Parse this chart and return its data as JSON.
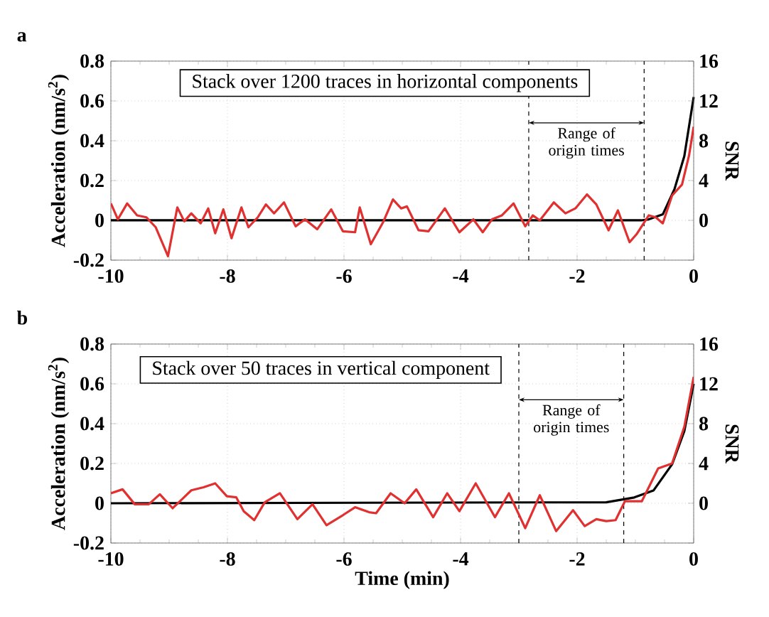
{
  "chart_data": [
    {
      "type": "line",
      "title": "a",
      "ylabel": "Acceleration (nm/s$^{2}$)",
      "y2label": "SNR",
      "xlim": [
        -10,
        0
      ],
      "xticks": [
        -10,
        -8,
        -6,
        -4,
        -2,
        0
      ],
      "ylim": [
        -0.2,
        0.8
      ],
      "yticks": [
        -0.2,
        0,
        0.2,
        0.4,
        0.6,
        0.8
      ],
      "y2lim": [
        -4,
        16
      ],
      "y2ticks": [
        {
          "value": -4,
          "label": null
        },
        0,
        4,
        8,
        12,
        16
      ],
      "grid": true,
      "marker": "none",
      "annotations": [
        "Stack over 1200 traces in horizontal components",
        "Range of origin times"
      ],
      "ref_lines": [
        {
          "axis": "x",
          "value": -2.83,
          "color": "#000000",
          "line_style": "dashed"
        },
        {
          "axis": "x",
          "value": -0.85,
          "color": "#000000",
          "line_style": "dashed"
        }
      ],
      "series": [
        {
          "color": "#000000",
          "x": [
            -10,
            -0.9,
            -0.77,
            -0.53,
            -0.33,
            -0.16,
            0
          ],
          "values": [
            0,
            0,
            0.005,
            0.03,
            0.156,
            0.323,
            0.62
          ]
        },
        {
          "color": "#e03030",
          "axis": "y2",
          "x": [
            -10,
            -9.88,
            -9.72,
            -9.55,
            -9.39,
            -9.23,
            -9.02,
            -8.86,
            -8.74,
            -8.62,
            -8.46,
            -8.33,
            -8.21,
            -8.07,
            -7.93,
            -7.76,
            -7.64,
            -7.48,
            -7.34,
            -7.2,
            -7.03,
            -6.83,
            -6.67,
            -6.46,
            -6.22,
            -6.02,
            -5.81,
            -5.73,
            -5.54,
            -5.33,
            -5.16,
            -5.02,
            -4.92,
            -4.72,
            -4.55,
            -4.27,
            -4.02,
            -3.78,
            -3.62,
            -3.46,
            -3.29,
            -3.09,
            -2.89,
            -2.76,
            -2.64,
            -2.4,
            -2.2,
            -2.03,
            -1.83,
            -1.67,
            -1.46,
            -1.3,
            -1.1,
            -0.98,
            -0.77,
            -0.65,
            -0.53,
            -0.37,
            -0.2,
            -0.08,
            0
          ],
          "values": [
            1.7,
            0.1,
            1.7,
            0.5,
            0.3,
            -0.7,
            -3.6,
            1.3,
            -0.1,
            0.7,
            -0.3,
            1.2,
            -1.3,
            1.1,
            -1.8,
            1.3,
            -0.7,
            0.3,
            1.6,
            0.7,
            1.8,
            -0.6,
            0.1,
            -0.9,
            1.1,
            -1.1,
            -1.2,
            1.3,
            -2.4,
            -0.2,
            2.1,
            1.2,
            1.4,
            -1.0,
            -1.1,
            1.2,
            -1.2,
            0.1,
            -1.2,
            0.1,
            0.5,
            1.7,
            -0.6,
            0.5,
            0,
            1.8,
            0.7,
            1.2,
            2.6,
            1.6,
            -1.0,
            1.0,
            -2.2,
            -1.4,
            0.5,
            0.3,
            -0.3,
            2.5,
            3.6,
            6.5,
            9.4
          ]
        }
      ]
    },
    {
      "type": "line",
      "title": "b",
      "xlabel": "Time (min)",
      "ylabel": "Acceleration (nm/s$^{2}$)",
      "y2label": "SNR",
      "xlim": [
        -10,
        0
      ],
      "xticks": [
        -10,
        -8,
        -6,
        -4,
        -2,
        0
      ],
      "ylim": [
        -0.2,
        0.8
      ],
      "yticks": [
        -0.2,
        0,
        0.2,
        0.4,
        0.6,
        0.8
      ],
      "y2lim": [
        -4,
        16
      ],
      "y2ticks": [
        {
          "value": -4,
          "label": null
        },
        0,
        4,
        8,
        12,
        16
      ],
      "grid": true,
      "marker": "none",
      "annotations": [
        "Stack over 50 traces in vertical component",
        "Range of origin times"
      ],
      "ref_lines": [
        {
          "axis": "x",
          "value": -3.0,
          "color": "#000000",
          "line_style": "dashed"
        },
        {
          "axis": "x",
          "value": -1.2,
          "color": "#000000",
          "line_style": "dashed"
        }
      ],
      "series": [
        {
          "color": "#000000",
          "x": [
            -10,
            -1.5,
            -1.02,
            -0.69,
            -0.37,
            -0.16,
            0
          ],
          "values": [
            0,
            0.005,
            0.029,
            0.064,
            0.196,
            0.363,
            0.6
          ]
        },
        {
          "color": "#e03030",
          "axis": "y2",
          "x": [
            -10,
            -9.8,
            -9.59,
            -9.35,
            -9.16,
            -8.94,
            -8.62,
            -8.41,
            -8.21,
            -8.01,
            -7.85,
            -7.72,
            -7.54,
            -7.36,
            -7.1,
            -6.8,
            -6.54,
            -6.3,
            -6.02,
            -5.81,
            -5.57,
            -5.45,
            -5.2,
            -4.96,
            -4.76,
            -4.47,
            -4.23,
            -4.02,
            -3.74,
            -3.41,
            -3.17,
            -2.89,
            -2.64,
            -2.36,
            -2.07,
            -1.87,
            -1.67,
            -1.5,
            -1.34,
            -1.18,
            -0.89,
            -0.61,
            -0.37,
            -0.16,
            0
          ],
          "values": [
            1.0,
            1.4,
            -0.1,
            -0.1,
            0.9,
            -0.5,
            1.3,
            1.6,
            2.0,
            0.7,
            0.6,
            -0.8,
            -1.7,
            0.1,
            1.0,
            -1.6,
            -0.1,
            -2.2,
            -1.2,
            -0.4,
            -0.9,
            -1.0,
            1.0,
            0,
            1.4,
            -1.4,
            1.0,
            -0.8,
            2.0,
            -1.4,
            1.0,
            -2.5,
            0.8,
            -2.8,
            -0.7,
            -2.3,
            -1.6,
            -1.8,
            -1.7,
            0.2,
            0.2,
            3.5,
            4.0,
            7.7,
            12.7
          ]
        }
      ]
    }
  ]
}
